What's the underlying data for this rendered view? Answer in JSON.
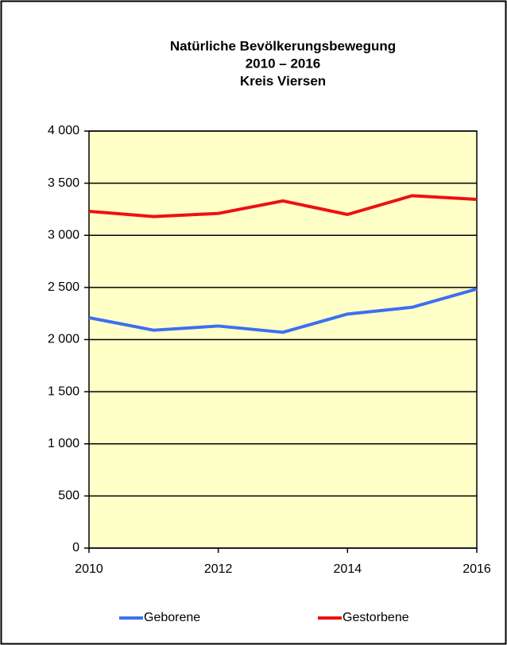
{
  "chart_data": {
    "type": "line",
    "title": [
      "Natürliche Bevölkerungsbewegung",
      "2010 – 2016",
      "Kreis Viersen"
    ],
    "x": [
      2010,
      2011,
      2012,
      2013,
      2014,
      2015,
      2016
    ],
    "xlim": [
      2010,
      2016
    ],
    "xticks": [
      2010,
      2012,
      2014,
      2016
    ],
    "ylim": [
      0,
      4000
    ],
    "yticks": [
      0,
      500,
      {
        "value": 1000,
        "label": "1 000"
      },
      {
        "value": 1500,
        "label": "1 500"
      },
      {
        "value": 2000,
        "label": "2 000"
      },
      {
        "value": 2500,
        "label": "2 500"
      },
      {
        "value": 3000,
        "label": "3 000"
      },
      {
        "value": 3500,
        "label": "3 500"
      },
      {
        "value": 4000,
        "label": "4 000"
      }
    ],
    "grid": true,
    "legend": "bottom",
    "background": "#ffffc8",
    "series": [
      {
        "name": "Geborene",
        "color": "#3d6ff0",
        "values": [
          2210,
          2090,
          2130,
          2070,
          2245,
          2310,
          2485
        ]
      },
      {
        "name": "Gestorbene",
        "color": "#ee1111",
        "values": [
          3230,
          3180,
          3210,
          3330,
          3200,
          3380,
          3345
        ]
      }
    ]
  }
}
